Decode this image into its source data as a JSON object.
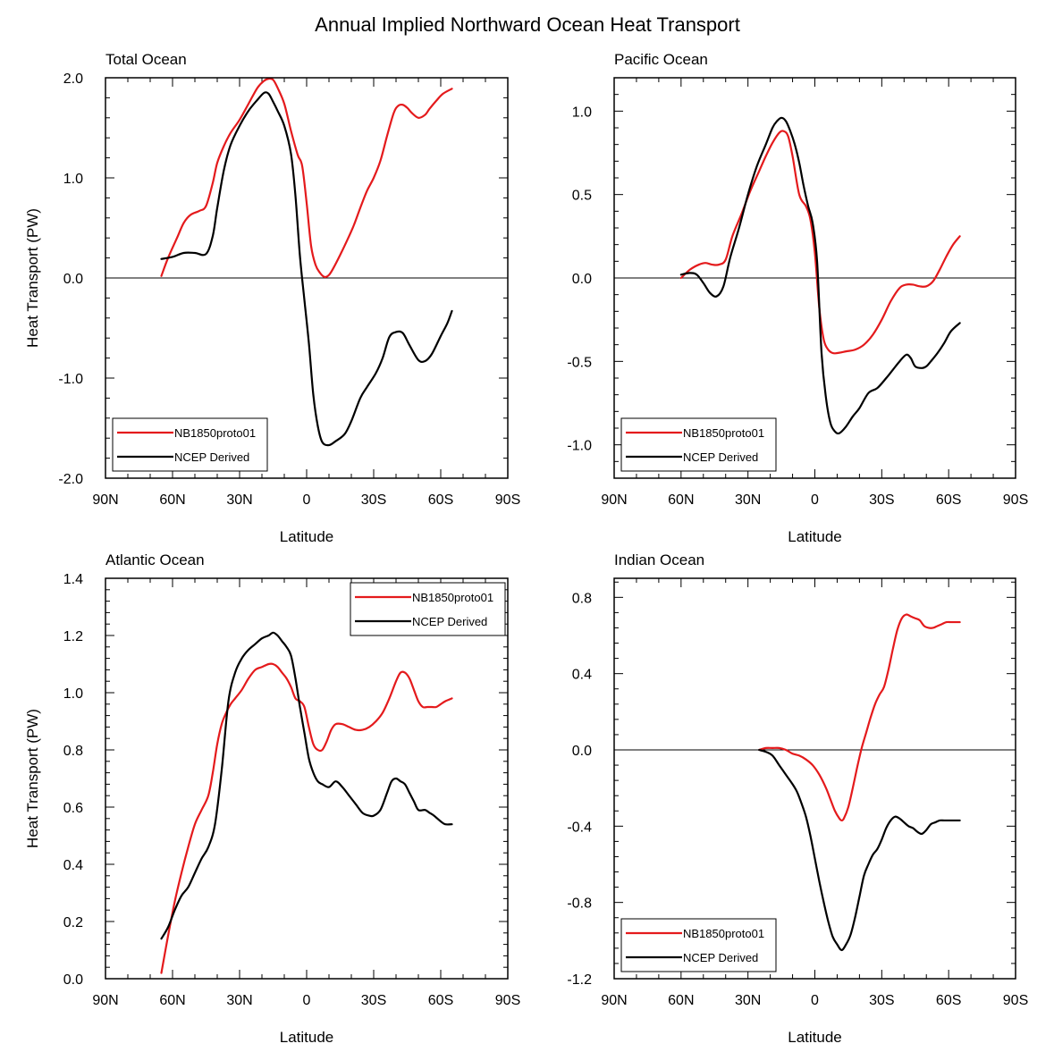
{
  "title": "Annual Implied Northward Ocean Heat Transport",
  "colors": {
    "model": "#e41a1c",
    "obs": "#000000"
  },
  "chart_data": [
    {
      "type": "line",
      "title": "Total Ocean",
      "xlabel": "Latitude",
      "ylabel": "Heat Transport (PW)",
      "xlim": [
        -90,
        90
      ],
      "ylim": [
        -2.0,
        2.0
      ],
      "xticks": [
        -90,
        -60,
        -30,
        0,
        30,
        60,
        90
      ],
      "xtick_labels": [
        "90N",
        "60N",
        "30N",
        "0",
        "30S",
        "60S",
        "90S"
      ],
      "yticks": [
        -2.0,
        -1.0,
        0.0,
        1.0,
        2.0
      ],
      "ytick_labels": [
        "-2.0",
        "-1.0",
        "0.0",
        "1.0",
        "2.0"
      ],
      "legend_position": "bottom-left",
      "zero_line": true,
      "series": [
        {
          "name": "NB1850proto01",
          "color": "#e41a1c",
          "x": [
            -65,
            -62,
            -58,
            -55,
            -52,
            -48,
            -45,
            -42,
            -40,
            -37,
            -34,
            -30,
            -26,
            -22,
            -19,
            -17,
            -15,
            -13,
            -10,
            -7,
            -4,
            -2,
            0,
            2,
            4,
            6,
            8,
            10,
            12,
            15,
            18,
            21,
            24,
            27,
            30,
            33,
            36,
            39,
            41,
            43,
            45,
            47,
            50,
            53,
            55,
            58,
            61,
            65
          ],
          "values": [
            0.02,
            0.2,
            0.4,
            0.55,
            0.63,
            0.67,
            0.72,
            0.95,
            1.15,
            1.32,
            1.45,
            1.58,
            1.74,
            1.9,
            1.97,
            1.99,
            1.98,
            1.9,
            1.74,
            1.47,
            1.23,
            1.12,
            0.75,
            0.32,
            0.13,
            0.05,
            0.01,
            0.03,
            0.1,
            0.23,
            0.37,
            0.52,
            0.7,
            0.87,
            1.0,
            1.17,
            1.42,
            1.65,
            1.72,
            1.73,
            1.7,
            1.65,
            1.6,
            1.63,
            1.69,
            1.77,
            1.84,
            1.89
          ]
        },
        {
          "name": "NCEP Derived",
          "color": "#000000",
          "x": [
            -65,
            -60,
            -55,
            -50,
            -45,
            -42,
            -40,
            -37,
            -34,
            -30,
            -26,
            -22,
            -19,
            -17,
            -15,
            -13,
            -10,
            -7,
            -5,
            -3,
            -1,
            1,
            3,
            5,
            7,
            10,
            13,
            17,
            20,
            24,
            27,
            31,
            34,
            37,
            40,
            43,
            46,
            50,
            53,
            56,
            60,
            63,
            65
          ],
          "values": [
            0.19,
            0.21,
            0.25,
            0.25,
            0.24,
            0.42,
            0.7,
            1.08,
            1.33,
            1.52,
            1.67,
            1.78,
            1.85,
            1.84,
            1.76,
            1.67,
            1.52,
            1.24,
            0.82,
            0.22,
            -0.22,
            -0.65,
            -1.17,
            -1.48,
            -1.64,
            -1.67,
            -1.63,
            -1.56,
            -1.43,
            -1.2,
            -1.09,
            -0.95,
            -0.8,
            -0.59,
            -0.54,
            -0.55,
            -0.67,
            -0.82,
            -0.83,
            -0.76,
            -0.58,
            -0.45,
            -0.33
          ]
        }
      ]
    },
    {
      "type": "line",
      "title": "Pacific Ocean",
      "xlabel": "Latitude",
      "ylabel": "",
      "xlim": [
        -90,
        90
      ],
      "ylim": [
        -1.2,
        1.2
      ],
      "xticks": [
        -90,
        -60,
        -30,
        0,
        30,
        60,
        90
      ],
      "xtick_labels": [
        "90N",
        "60N",
        "30N",
        "0",
        "30S",
        "60S",
        "90S"
      ],
      "yticks": [
        -1.0,
        -0.5,
        0.0,
        0.5,
        1.0
      ],
      "ytick_labels": [
        "-1.0",
        "-0.5",
        "0.0",
        "0.5",
        "1.0"
      ],
      "legend_position": "bottom-left",
      "zero_line": true,
      "series": [
        {
          "name": "NB1850proto01",
          "color": "#e41a1c",
          "x": [
            -60,
            -56,
            -52,
            -49,
            -46,
            -43,
            -40,
            -37,
            -33,
            -29,
            -25,
            -22,
            -19,
            -16,
            -14,
            -12,
            -10,
            -7,
            -4,
            -2,
            0,
            2,
            4,
            6,
            8,
            10,
            14,
            18,
            22,
            26,
            30,
            34,
            38,
            41,
            44,
            47,
            50,
            53,
            56,
            59,
            62,
            65
          ],
          "values": [
            0.0,
            0.05,
            0.08,
            0.09,
            0.08,
            0.08,
            0.11,
            0.25,
            0.38,
            0.52,
            0.64,
            0.73,
            0.81,
            0.87,
            0.88,
            0.85,
            0.73,
            0.5,
            0.43,
            0.35,
            0.15,
            -0.18,
            -0.37,
            -0.43,
            -0.45,
            -0.45,
            -0.44,
            -0.43,
            -0.4,
            -0.34,
            -0.25,
            -0.14,
            -0.06,
            -0.04,
            -0.04,
            -0.05,
            -0.05,
            -0.02,
            0.05,
            0.13,
            0.2,
            0.25
          ]
        },
        {
          "name": "NCEP Derived",
          "color": "#000000",
          "x": [
            -60,
            -56,
            -53,
            -50,
            -47,
            -44,
            -41,
            -38,
            -34,
            -30,
            -26,
            -22,
            -19,
            -17,
            -15,
            -13,
            -11,
            -9,
            -7,
            -5,
            -3,
            -1,
            1,
            3,
            5,
            7,
            9,
            11,
            14,
            17,
            20,
            24,
            28,
            32,
            35,
            38,
            41,
            43,
            45,
            48,
            50,
            52,
            55,
            58,
            61,
            65
          ],
          "values": [
            0.02,
            0.03,
            0.02,
            -0.03,
            -0.09,
            -0.11,
            -0.05,
            0.12,
            0.3,
            0.5,
            0.67,
            0.8,
            0.9,
            0.94,
            0.96,
            0.94,
            0.88,
            0.8,
            0.69,
            0.55,
            0.43,
            0.33,
            0.1,
            -0.45,
            -0.72,
            -0.87,
            -0.92,
            -0.93,
            -0.89,
            -0.83,
            -0.78,
            -0.69,
            -0.66,
            -0.6,
            -0.55,
            -0.5,
            -0.46,
            -0.48,
            -0.53,
            -0.54,
            -0.53,
            -0.5,
            -0.45,
            -0.39,
            -0.32,
            -0.27
          ]
        }
      ]
    },
    {
      "type": "line",
      "title": "Atlantic Ocean",
      "xlabel": "Latitude",
      "ylabel": "Heat Transport (PW)",
      "xlim": [
        -90,
        90
      ],
      "ylim": [
        0.0,
        1.4
      ],
      "xticks": [
        -90,
        -60,
        -30,
        0,
        30,
        60,
        90
      ],
      "xtick_labels": [
        "90N",
        "60N",
        "30N",
        "0",
        "30S",
        "60S",
        "90S"
      ],
      "yticks": [
        0.0,
        0.2,
        0.4,
        0.6,
        0.8,
        1.0,
        1.2,
        1.4
      ],
      "ytick_labels": [
        "0.0",
        "0.2",
        "0.4",
        "0.6",
        "0.8",
        "1.0",
        "1.2",
        "1.4"
      ],
      "legend_position": "top-right",
      "zero_line": false,
      "series": [
        {
          "name": "NB1850proto01",
          "color": "#e41a1c",
          "x": [
            -65,
            -62,
            -59,
            -56,
            -53,
            -50,
            -47,
            -44,
            -42,
            -40,
            -38,
            -36,
            -34,
            -32,
            -29,
            -26,
            -23,
            -20,
            -17,
            -15,
            -13,
            -11,
            -9,
            -7,
            -5,
            -3,
            -1,
            1,
            3,
            5,
            7,
            9,
            11,
            13,
            16,
            19,
            22,
            25,
            28,
            31,
            34,
            37,
            40,
            42,
            44,
            46,
            48,
            50,
            52,
            54,
            56,
            58,
            60,
            62,
            65
          ],
          "values": [
            0.02,
            0.15,
            0.27,
            0.37,
            0.46,
            0.54,
            0.59,
            0.64,
            0.72,
            0.82,
            0.89,
            0.93,
            0.96,
            0.98,
            1.01,
            1.05,
            1.08,
            1.09,
            1.1,
            1.1,
            1.09,
            1.07,
            1.05,
            1.02,
            0.98,
            0.97,
            0.95,
            0.88,
            0.82,
            0.8,
            0.8,
            0.83,
            0.87,
            0.89,
            0.89,
            0.88,
            0.87,
            0.87,
            0.88,
            0.9,
            0.93,
            0.98,
            1.04,
            1.07,
            1.07,
            1.05,
            1.01,
            0.97,
            0.95,
            0.95,
            0.95,
            0.95,
            0.96,
            0.97,
            0.98
          ]
        },
        {
          "name": "NCEP Derived",
          "color": "#000000",
          "x": [
            -65,
            -62,
            -59,
            -56,
            -53,
            -50,
            -47,
            -44,
            -41,
            -38,
            -35,
            -32,
            -29,
            -26,
            -23,
            -20,
            -17,
            -15,
            -13,
            -11,
            -9,
            -7,
            -5,
            -3,
            -1,
            1,
            3,
            5,
            7,
            10,
            13,
            16,
            19,
            22,
            25,
            28,
            30,
            33,
            36,
            38,
            40,
            42,
            44,
            46,
            48,
            50,
            53,
            55,
            57,
            60,
            62,
            65
          ],
          "values": [
            0.14,
            0.18,
            0.24,
            0.29,
            0.32,
            0.37,
            0.42,
            0.46,
            0.54,
            0.73,
            0.97,
            1.07,
            1.12,
            1.15,
            1.17,
            1.19,
            1.2,
            1.21,
            1.2,
            1.18,
            1.16,
            1.13,
            1.05,
            0.95,
            0.86,
            0.77,
            0.72,
            0.69,
            0.68,
            0.67,
            0.69,
            0.67,
            0.64,
            0.61,
            0.58,
            0.57,
            0.57,
            0.59,
            0.65,
            0.69,
            0.7,
            0.69,
            0.68,
            0.65,
            0.62,
            0.59,
            0.59,
            0.58,
            0.57,
            0.55,
            0.54,
            0.54
          ]
        }
      ]
    },
    {
      "type": "line",
      "title": "Indian Ocean",
      "xlabel": "Latitude",
      "ylabel": "",
      "xlim": [
        -90,
        90
      ],
      "ylim": [
        -1.2,
        0.9
      ],
      "xticks": [
        -90,
        -60,
        -30,
        0,
        30,
        60,
        90
      ],
      "xtick_labels": [
        "90N",
        "60N",
        "30N",
        "0",
        "30S",
        "60S",
        "90S"
      ],
      "yticks": [
        -1.2,
        -0.8,
        -0.4,
        0.0,
        0.4,
        0.8
      ],
      "ytick_labels": [
        "-1.2",
        "-0.8",
        "-0.4",
        "0.0",
        "0.4",
        "0.8"
      ],
      "legend_position": "bottom-left",
      "zero_line": true,
      "series": [
        {
          "name": "NB1850proto01",
          "color": "#e41a1c",
          "x": [
            -25,
            -22,
            -19,
            -16,
            -13,
            -10,
            -7,
            -4,
            -1,
            2,
            5,
            7,
            9,
            11,
            12,
            13,
            15,
            17,
            19,
            21,
            23,
            25,
            27,
            29,
            31,
            33,
            35,
            37,
            39,
            41,
            43,
            45,
            47,
            49,
            51,
            53,
            55,
            57,
            59,
            61,
            63,
            65
          ],
          "values": [
            0.0,
            0.01,
            0.01,
            0.01,
            0.0,
            -0.02,
            -0.03,
            -0.05,
            -0.08,
            -0.13,
            -0.2,
            -0.26,
            -0.32,
            -0.36,
            -0.37,
            -0.36,
            -0.3,
            -0.2,
            -0.09,
            0.01,
            0.09,
            0.17,
            0.24,
            0.29,
            0.33,
            0.42,
            0.53,
            0.63,
            0.69,
            0.71,
            0.7,
            0.69,
            0.68,
            0.65,
            0.64,
            0.64,
            0.65,
            0.66,
            0.67,
            0.67,
            0.67,
            0.67
          ]
        },
        {
          "name": "NCEP Derived",
          "color": "#000000",
          "x": [
            -25,
            -22,
            -19,
            -16,
            -13,
            -10,
            -8,
            -6,
            -4,
            -2,
            0,
            2,
            4,
            6,
            8,
            10,
            12,
            14,
            16,
            18,
            20,
            22,
            24,
            26,
            28,
            30,
            32,
            34,
            36,
            38,
            40,
            42,
            44,
            46,
            48,
            50,
            52,
            54,
            56,
            58,
            60,
            62,
            65
          ],
          "values": [
            0.0,
            -0.01,
            -0.03,
            -0.08,
            -0.13,
            -0.18,
            -0.22,
            -0.28,
            -0.35,
            -0.45,
            -0.57,
            -0.69,
            -0.8,
            -0.9,
            -0.98,
            -1.02,
            -1.05,
            -1.02,
            -0.97,
            -0.88,
            -0.77,
            -0.66,
            -0.6,
            -0.55,
            -0.52,
            -0.47,
            -0.41,
            -0.37,
            -0.35,
            -0.36,
            -0.38,
            -0.4,
            -0.41,
            -0.43,
            -0.44,
            -0.42,
            -0.39,
            -0.38,
            -0.37,
            -0.37,
            -0.37,
            -0.37,
            -0.37
          ]
        }
      ]
    }
  ]
}
